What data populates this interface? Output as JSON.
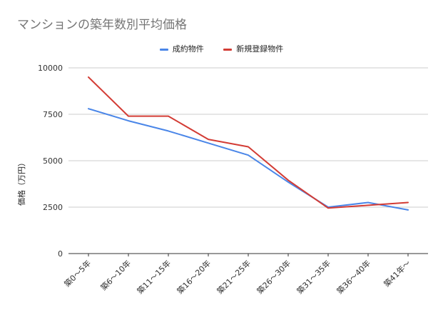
{
  "chart_data": {
    "type": "line",
    "title": "マンションの築年数別平均価格",
    "ylabel": "価格（万円）",
    "xlabel": "",
    "categories": [
      "築0～5年",
      "築6～10年",
      "築11～15年",
      "築16～20年",
      "築21～25年",
      "築26～30年",
      "築31～35年",
      "築36～40年",
      "築41年～"
    ],
    "ylim": [
      0,
      10000
    ],
    "yticks": [
      "0",
      "2500",
      "5000",
      "7500",
      "10000"
    ],
    "grid": true,
    "legend_position": "top",
    "series": [
      {
        "name": "成約物件",
        "color": "#4a86e8",
        "values": [
          7800,
          7150,
          6600,
          5950,
          5300,
          3850,
          2500,
          2750,
          2350
        ]
      },
      {
        "name": "新規登録物件",
        "color": "#d33c35",
        "values": [
          9500,
          7400,
          7400,
          6150,
          5750,
          3950,
          2450,
          2600,
          2750
        ]
      }
    ]
  }
}
